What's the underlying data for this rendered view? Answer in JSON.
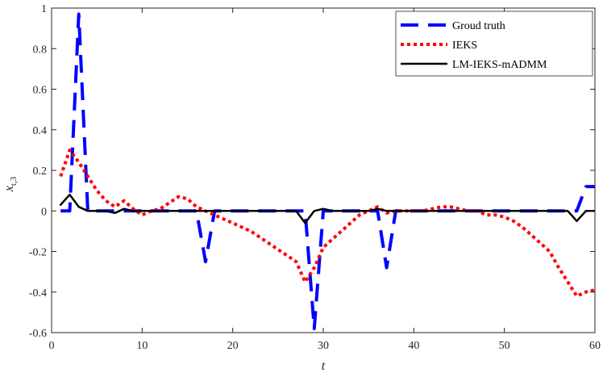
{
  "chart_data": {
    "type": "line",
    "xlabel": "t",
    "ylabel": "x_{t,3}",
    "xlim": [
      0,
      60
    ],
    "ylim": [
      -0.6,
      1
    ],
    "xticks": [
      0,
      10,
      20,
      30,
      40,
      50,
      60
    ],
    "xtick_labels": [
      "0",
      "10",
      "20",
      "30",
      "40",
      "50",
      "60"
    ],
    "yticks": [
      -0.6,
      -0.4,
      -0.2,
      0,
      0.2,
      0.4,
      0.6,
      0.8,
      1
    ],
    "ytick_labels": [
      "-0.6",
      "-0.4",
      "-0.2",
      "0",
      "0.2",
      "0.4",
      "0.6",
      "0.8",
      "1"
    ],
    "grid": false,
    "legend_position": "top-right",
    "series": [
      {
        "name": "Groud truth",
        "color": "#0000ff",
        "style": "dashed",
        "x": [
          1,
          2,
          3,
          4,
          5,
          6,
          7,
          8,
          9,
          10,
          11,
          12,
          13,
          14,
          15,
          16,
          17,
          18,
          19,
          20,
          21,
          22,
          23,
          24,
          25,
          26,
          27,
          28,
          29,
          30,
          31,
          32,
          33,
          34,
          35,
          36,
          37,
          38,
          39,
          40,
          41,
          42,
          43,
          44,
          45,
          46,
          47,
          48,
          49,
          50,
          51,
          52,
          53,
          54,
          55,
          56,
          57,
          58,
          59,
          60
        ],
        "y": [
          0,
          0,
          0.97,
          0,
          0,
          0,
          0,
          0,
          0,
          0,
          0,
          0,
          0,
          0,
          0,
          0,
          -0.25,
          0,
          0,
          0,
          0,
          0,
          0,
          0,
          0,
          0,
          0,
          0,
          -0.58,
          0,
          0,
          0,
          0,
          0,
          0,
          0,
          -0.28,
          0,
          0,
          0,
          0,
          0,
          0,
          0,
          0,
          0,
          0,
          0,
          0,
          0,
          0,
          0,
          0,
          0,
          0,
          0,
          0,
          0,
          0.12,
          0.12
        ]
      },
      {
        "name": "IEKS",
        "color": "#ff0000",
        "style": "dotted",
        "x": [
          1,
          2,
          3,
          4,
          5,
          6,
          7,
          8,
          9,
          10,
          11,
          12,
          13,
          14,
          15,
          16,
          17,
          18,
          19,
          20,
          21,
          22,
          23,
          24,
          25,
          26,
          27,
          28,
          29,
          30,
          31,
          32,
          33,
          34,
          35,
          36,
          37,
          38,
          39,
          40,
          41,
          42,
          43,
          44,
          45,
          46,
          47,
          48,
          49,
          50,
          51,
          52,
          53,
          54,
          55,
          56,
          57,
          58,
          59,
          60
        ],
        "y": [
          0.17,
          0.3,
          0.24,
          0.17,
          0.1,
          0.05,
          0.02,
          0.05,
          0.01,
          -0.02,
          0.0,
          0.01,
          0.04,
          0.07,
          0.06,
          0.02,
          0.0,
          -0.02,
          -0.04,
          -0.06,
          -0.08,
          -0.1,
          -0.13,
          -0.16,
          -0.19,
          -0.22,
          -0.25,
          -0.35,
          -0.28,
          -0.18,
          -0.14,
          -0.1,
          -0.06,
          -0.02,
          0.0,
          0.02,
          -0.01,
          0.0,
          0.0,
          0.0,
          0.0,
          0.01,
          0.02,
          0.02,
          0.01,
          0.0,
          0.0,
          -0.02,
          -0.02,
          -0.03,
          -0.05,
          -0.08,
          -0.12,
          -0.16,
          -0.2,
          -0.28,
          -0.35,
          -0.42,
          -0.4,
          -0.39
        ]
      },
      {
        "name": "LM-IEKS-mADMM",
        "color": "#000000",
        "style": "solid",
        "x": [
          1,
          2,
          3,
          4,
          5,
          6,
          7,
          8,
          9,
          10,
          11,
          12,
          13,
          14,
          15,
          16,
          17,
          18,
          19,
          20,
          21,
          22,
          23,
          24,
          25,
          26,
          27,
          28,
          29,
          30,
          31,
          32,
          33,
          34,
          35,
          36,
          37,
          38,
          39,
          40,
          41,
          42,
          43,
          44,
          45,
          46,
          47,
          48,
          49,
          50,
          51,
          52,
          53,
          54,
          55,
          56,
          57,
          58,
          59,
          60
        ],
        "y": [
          0.03,
          0.08,
          0.02,
          0.0,
          0.0,
          0.0,
          -0.01,
          0.01,
          0.0,
          0.0,
          0.0,
          0.0,
          0.0,
          0.0,
          0.0,
          0.0,
          0.0,
          0.0,
          0.0,
          0.0,
          0.0,
          0.0,
          0.0,
          0.0,
          0.0,
          0.0,
          0.0,
          -0.06,
          0.0,
          0.01,
          0.0,
          0.0,
          0.0,
          0.0,
          0.0,
          0.01,
          0.0,
          0.0,
          0.0,
          0.0,
          0.0,
          0.0,
          0.0,
          0.0,
          0.0,
          0.0,
          0.0,
          0.0,
          0.0,
          0.0,
          0.0,
          0.0,
          0.0,
          0.0,
          0.0,
          0.0,
          0.0,
          -0.05,
          0.0,
          0.0
        ]
      }
    ]
  }
}
